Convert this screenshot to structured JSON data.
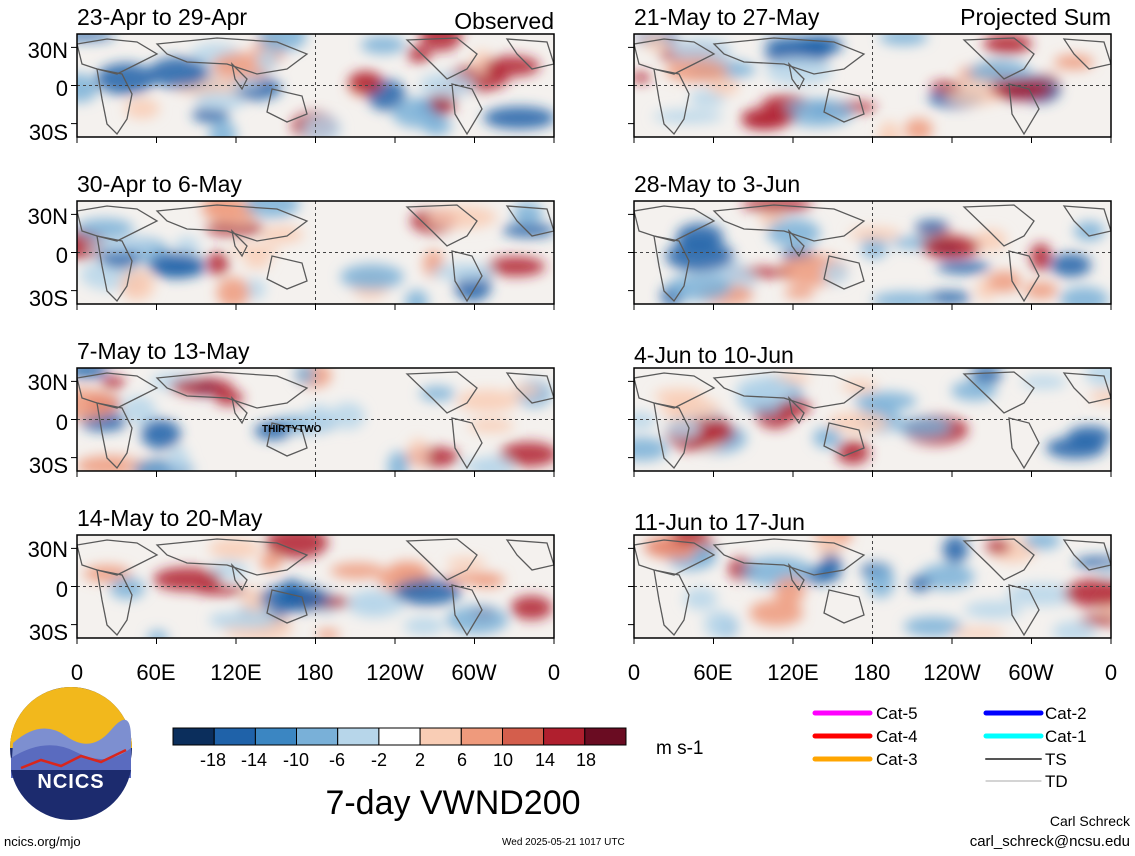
{
  "chart_data": {
    "type": "heatmap",
    "title": "7-day VWND200",
    "units": "m s-1",
    "left_column_label": "Observed",
    "right_column_label": "Projected Sum",
    "left_panels": [
      {
        "title": "23-Apr to 29-Apr"
      },
      {
        "title": "30-Apr to 6-May"
      },
      {
        "title": "7-May to 13-May",
        "annotation": "THIRTYTWO"
      },
      {
        "title": "14-May to 20-May"
      }
    ],
    "right_panels": [
      {
        "title": "21-May to 27-May"
      },
      {
        "title": "28-May to 3-Jun"
      },
      {
        "title": "4-Jun to 10-Jun"
      },
      {
        "title": "11-Jun to 17-Jun"
      }
    ],
    "lat_ticks": [
      "30N",
      "0",
      "30S"
    ],
    "lon_ticks": [
      "0",
      "60E",
      "120E",
      "180",
      "120W",
      "60W",
      "0"
    ],
    "colorbar": {
      "ticks": [
        "-18",
        "-14",
        "-10",
        "-6",
        "-2",
        "2",
        "6",
        "10",
        "14",
        "18"
      ],
      "colors": [
        "#0b2e5c",
        "#1f62a9",
        "#3b86c2",
        "#79b0d8",
        "#b7d6ea",
        "#ffffff",
        "#f9cdb5",
        "#ef9a7c",
        "#d45e4c",
        "#b01f2e",
        "#6a0c22"
      ]
    },
    "legend": [
      {
        "label": "Cat-5",
        "color": "#ff00ff"
      },
      {
        "label": "Cat-4",
        "color": "#ff0000"
      },
      {
        "label": "Cat-3",
        "color": "#ffa500"
      },
      {
        "label": "Cat-2",
        "color": "#0000ff"
      },
      {
        "label": "Cat-1",
        "color": "#00ffff"
      },
      {
        "label": "TS",
        "color": "#555555"
      },
      {
        "label": "TD",
        "color": "#bbbbbb"
      }
    ]
  },
  "logo": {
    "text": "NCICS"
  },
  "footer": {
    "url": "ncics.org/mjo",
    "timestamp": "Wed 2025-05-21 1017 UTC",
    "author": "Carl Schreck",
    "email": "carl_schreck@ncsu.edu"
  }
}
